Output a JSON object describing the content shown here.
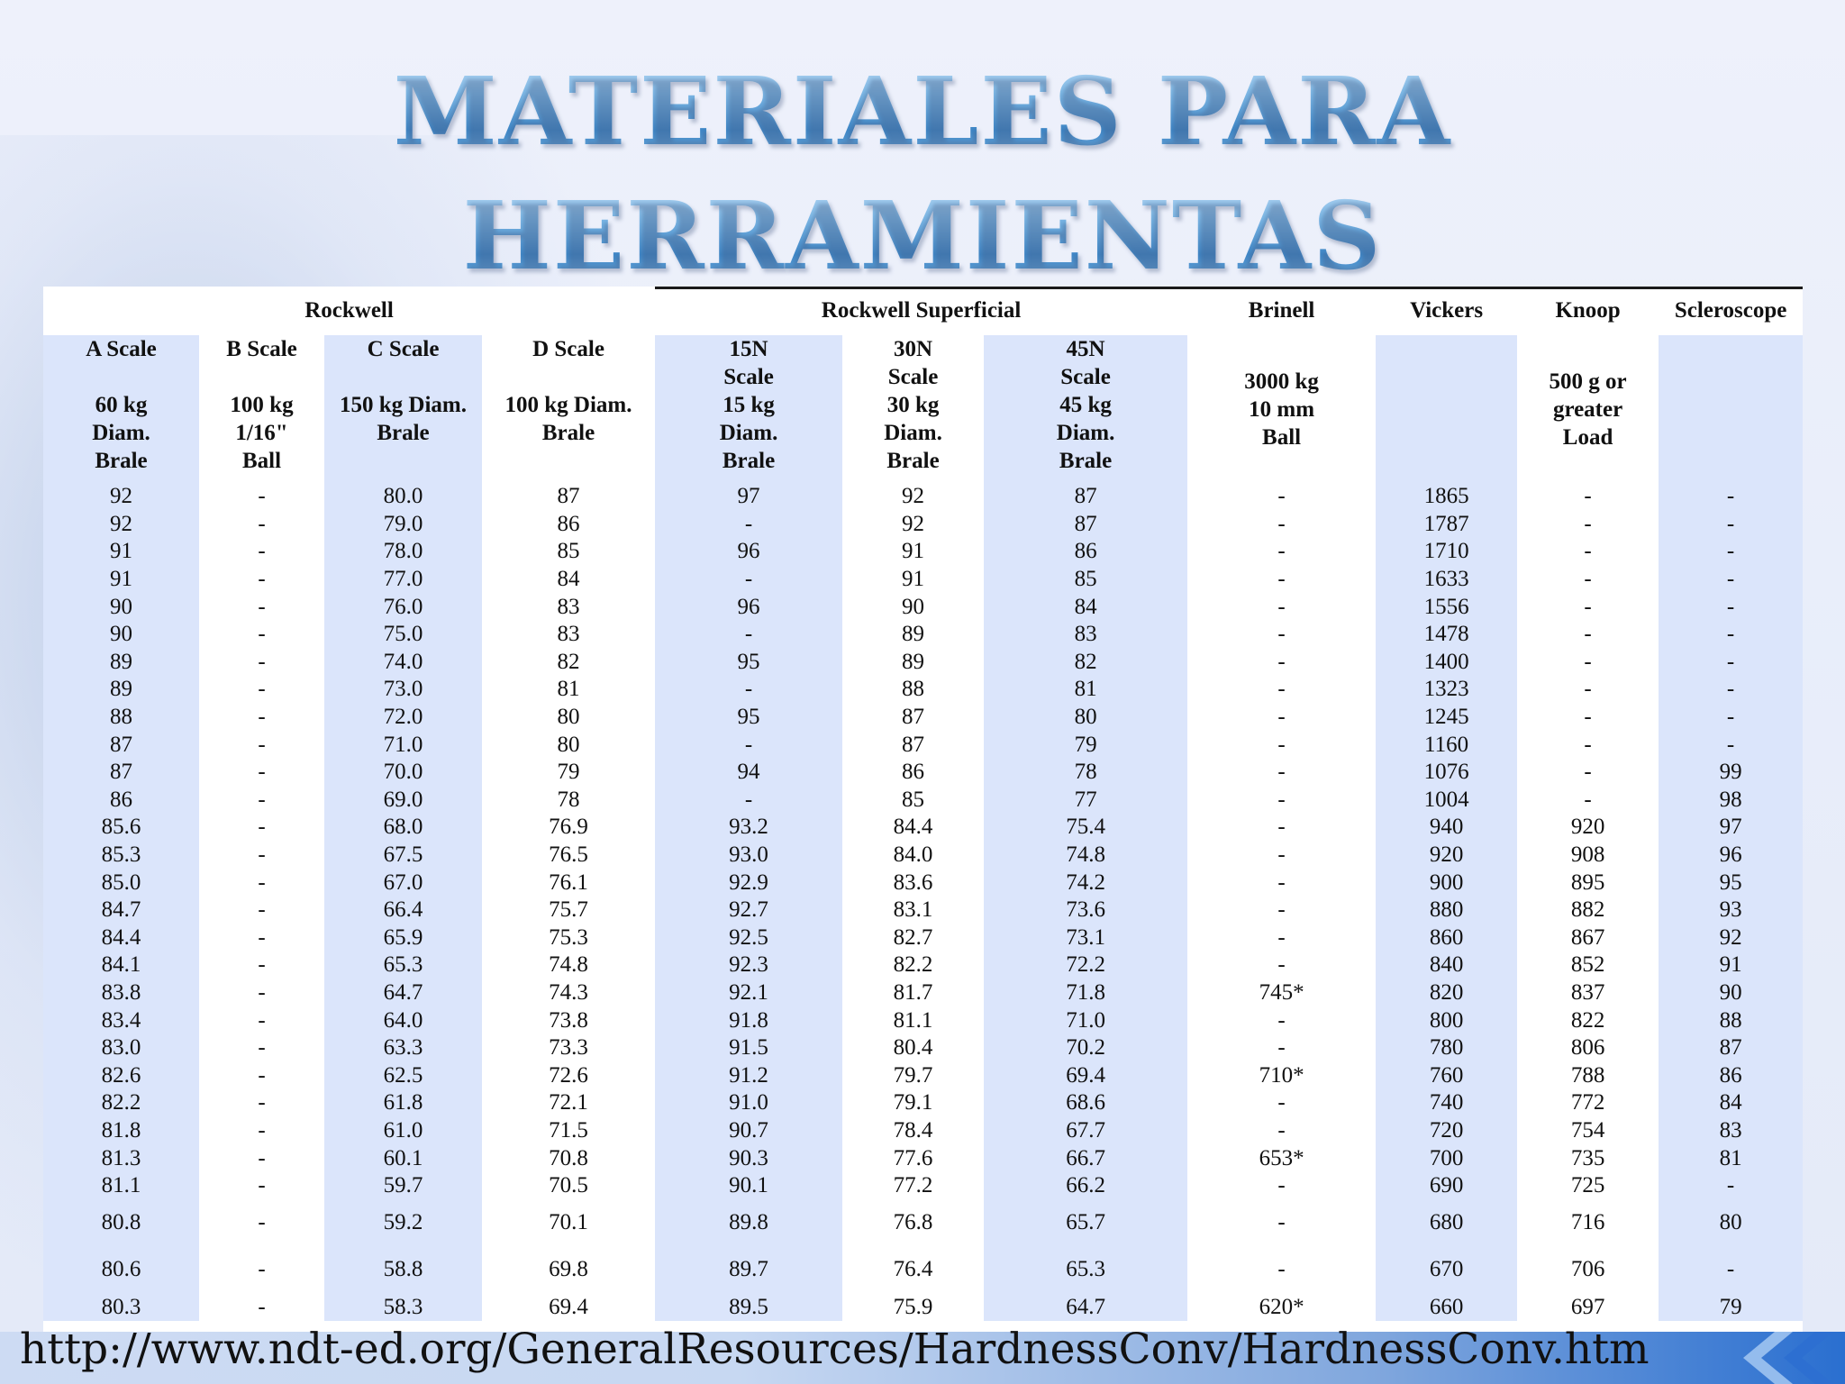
{
  "title": {
    "line1": "MATERIALES PARA",
    "line2": "HERRAMIENTAS"
  },
  "table": {
    "groups": {
      "rockwell": "Rockwell",
      "rockwell_superficial": "Rockwell Superficial",
      "brinell": "Brinell",
      "vickers": "Vickers",
      "knoop": "Knoop",
      "scleroscope": "Scleroscope"
    },
    "subheaders": {
      "a": {
        "l1": "A Scale",
        "l2": "60 kg",
        "l3": "Diam.",
        "l4": "Brale"
      },
      "b": {
        "l1": "B Scale",
        "l2": "100 kg",
        "l3": "1/16\"",
        "l4": "Ball"
      },
      "c": {
        "l1": "C Scale",
        "l2": "150 kg Diam.",
        "l3": "Brale"
      },
      "d": {
        "l1": "D Scale",
        "l2": "100 kg Diam.",
        "l3": "Brale"
      },
      "n15": {
        "l1": "15N",
        "l2": "Scale",
        "l3": "15 kg",
        "l4": "Diam.",
        "l5": "Brale"
      },
      "n30": {
        "l1": "30N",
        "l2": "Scale",
        "l3": "30 kg",
        "l4": "Diam.",
        "l5": "Brale"
      },
      "n45": {
        "l1": "45N",
        "l2": "Scale",
        "l3": "45 kg",
        "l4": "Diam.",
        "l5": "Brale"
      },
      "brinell": {
        "l1": "3000 kg",
        "l2": "10 mm",
        "l3": "Ball"
      },
      "knoop": {
        "l1": "500 g or",
        "l2": "greater",
        "l3": "Load"
      }
    },
    "rows": [
      [
        "92",
        "-",
        "80.0",
        "87",
        "97",
        "92",
        "87",
        "-",
        "1865",
        "-",
        "-"
      ],
      [
        "92",
        "-",
        "79.0",
        "86",
        "-",
        "92",
        "87",
        "-",
        "1787",
        "-",
        "-"
      ],
      [
        "91",
        "-",
        "78.0",
        "85",
        "96",
        "91",
        "86",
        "-",
        "1710",
        "-",
        "-"
      ],
      [
        "91",
        "-",
        "77.0",
        "84",
        "-",
        "91",
        "85",
        "-",
        "1633",
        "-",
        "-"
      ],
      [
        "90",
        "-",
        "76.0",
        "83",
        "96",
        "90",
        "84",
        "-",
        "1556",
        "-",
        "-"
      ],
      [
        "90",
        "-",
        "75.0",
        "83",
        "-",
        "89",
        "83",
        "-",
        "1478",
        "-",
        "-"
      ],
      [
        "89",
        "-",
        "74.0",
        "82",
        "95",
        "89",
        "82",
        "-",
        "1400",
        "-",
        "-"
      ],
      [
        "89",
        "-",
        "73.0",
        "81",
        "-",
        "88",
        "81",
        "-",
        "1323",
        "-",
        "-"
      ],
      [
        "88",
        "-",
        "72.0",
        "80",
        "95",
        "87",
        "80",
        "-",
        "1245",
        "-",
        "-"
      ],
      [
        "87",
        "-",
        "71.0",
        "80",
        "-",
        "87",
        "79",
        "-",
        "1160",
        "-",
        "-"
      ],
      [
        "87",
        "-",
        "70.0",
        "79",
        "94",
        "86",
        "78",
        "-",
        "1076",
        "-",
        "99"
      ],
      [
        "86",
        "-",
        "69.0",
        "78",
        "-",
        "85",
        "77",
        "-",
        "1004",
        "-",
        "98"
      ],
      [
        "85.6",
        "-",
        "68.0",
        "76.9",
        "93.2",
        "84.4",
        "75.4",
        "-",
        "940",
        "920",
        "97"
      ],
      [
        "85.3",
        "-",
        "67.5",
        "76.5",
        "93.0",
        "84.0",
        "74.8",
        "-",
        "920",
        "908",
        "96"
      ],
      [
        "85.0",
        "-",
        "67.0",
        "76.1",
        "92.9",
        "83.6",
        "74.2",
        "-",
        "900",
        "895",
        "95"
      ],
      [
        "84.7",
        "-",
        "66.4",
        "75.7",
        "92.7",
        "83.1",
        "73.6",
        "-",
        "880",
        "882",
        "93"
      ],
      [
        "84.4",
        "-",
        "65.9",
        "75.3",
        "92.5",
        "82.7",
        "73.1",
        "-",
        "860",
        "867",
        "92"
      ],
      [
        "84.1",
        "-",
        "65.3",
        "74.8",
        "92.3",
        "82.2",
        "72.2",
        "-",
        "840",
        "852",
        "91"
      ],
      [
        "83.8",
        "-",
        "64.7",
        "74.3",
        "92.1",
        "81.7",
        "71.8",
        "745*",
        "820",
        "837",
        "90"
      ],
      [
        "83.4",
        "-",
        "64.0",
        "73.8",
        "91.8",
        "81.1",
        "71.0",
        "-",
        "800",
        "822",
        "88"
      ],
      [
        "83.0",
        "-",
        "63.3",
        "73.3",
        "91.5",
        "80.4",
        "70.2",
        "-",
        "780",
        "806",
        "87"
      ],
      [
        "82.6",
        "-",
        "62.5",
        "72.6",
        "91.2",
        "79.7",
        "69.4",
        "710*",
        "760",
        "788",
        "86"
      ],
      [
        "82.2",
        "-",
        "61.8",
        "72.1",
        "91.0",
        "79.1",
        "68.6",
        "-",
        "740",
        "772",
        "84"
      ],
      [
        "81.8",
        "-",
        "61.0",
        "71.5",
        "90.7",
        "78.4",
        "67.7",
        "-",
        "720",
        "754",
        "83"
      ],
      [
        "81.3",
        "-",
        "60.1",
        "70.8",
        "90.3",
        "77.6",
        "66.7",
        "653*",
        "700",
        "735",
        "81"
      ],
      [
        "81.1",
        "-",
        "59.7",
        "70.5",
        "90.1",
        "77.2",
        "66.2",
        "-",
        "690",
        "725",
        "-"
      ],
      [
        "80.8",
        "-",
        "59.2",
        "70.1",
        "89.8",
        "76.8",
        "65.7",
        "-",
        "680",
        "716",
        "80"
      ],
      [
        "80.6",
        "-",
        "58.8",
        "69.8",
        "89.7",
        "76.4",
        "65.3",
        "-",
        "670",
        "706",
        "-"
      ],
      [
        "80.3",
        "-",
        "58.3",
        "69.4",
        "89.5",
        "75.9",
        "64.7",
        "620*",
        "660",
        "697",
        "79"
      ]
    ]
  },
  "footer": {
    "url": "http://www.ndt-ed.org/GeneralResources/HardnessConv/HardnessConv.htm"
  },
  "colors": {
    "title_blue": "#4f95cf",
    "column_shade": "#dbe5fb",
    "footer_accent": "#2a6fd0"
  }
}
